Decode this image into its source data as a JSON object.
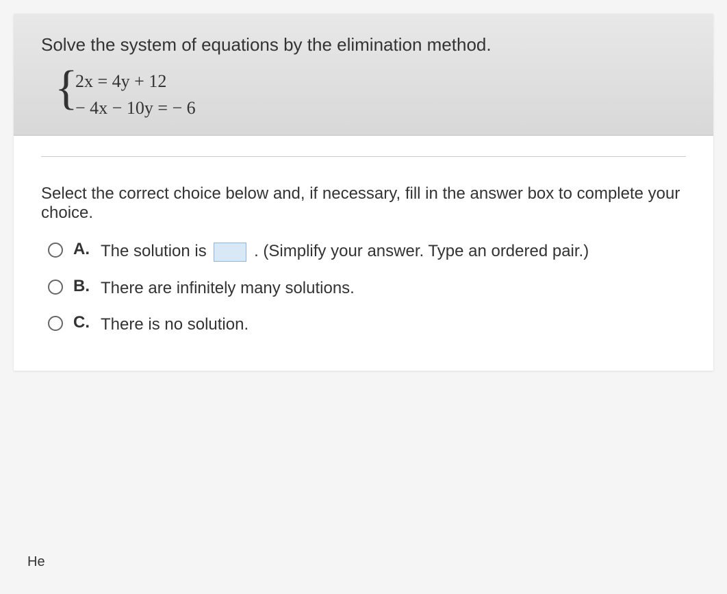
{
  "question": {
    "prompt": "Solve the system of equations by the elimination method.",
    "equations": {
      "line1": "2x = 4y + 12",
      "line2": "− 4x − 10y = − 6"
    }
  },
  "instruction": "Select the correct choice below and, if necessary, fill in the answer box to complete your choice.",
  "options": {
    "a": {
      "label": "A.",
      "text_before": "The solution is ",
      "text_after": ". (Simplify your answer. Type an ordered pair.)"
    },
    "b": {
      "label": "B.",
      "text": "There are infinitely many solutions."
    },
    "c": {
      "label": "C.",
      "text": "There is no solution."
    }
  },
  "footer": {
    "help_prefix": "He"
  },
  "colors": {
    "card_bg": "#ffffff",
    "page_bg": "#f5f5f5",
    "text": "#333333",
    "divider": "#cccccc",
    "answer_box_bg": "#d9e8f5",
    "answer_box_border": "#8fb4d9",
    "radio_border": "#666666"
  },
  "typography": {
    "body_fontsize": 24,
    "prompt_fontsize": 26,
    "equation_fontsize": 26,
    "equation_family": "Times New Roman"
  }
}
